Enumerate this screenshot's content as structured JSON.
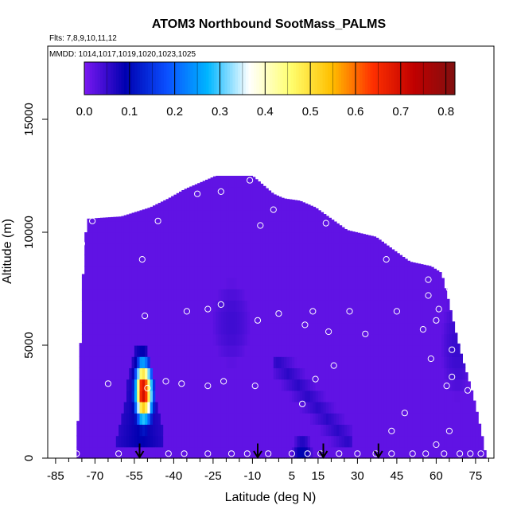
{
  "chart_data": {
    "type": "heatmap",
    "title": "ATOM3 Northbound SootMass_PALMS",
    "flights_label": "Flts: 7,8,9,10,11,12",
    "dates_label": "MMDD: 1014,1017,1019,1020,1023,1025",
    "xlabel": "Latitude (deg N)",
    "ylabel": "Altitude (m)",
    "xlim": [
      -88,
      82
    ],
    "ylim": [
      0,
      17500
    ],
    "x_ticks": [
      -85,
      -70,
      -55,
      -40,
      -25,
      -10,
      5,
      15,
      30,
      45,
      60,
      75
    ],
    "x_tick_labels": [
      "-85",
      "-70",
      "-55",
      "-40",
      "-25",
      "-10",
      "5",
      "15",
      "30",
      "45",
      "60",
      "75"
    ],
    "y_ticks": [
      0,
      5000,
      10000,
      15000
    ],
    "y_tick_labels": [
      "0",
      "5000",
      "10000",
      "15000"
    ],
    "colorbar": {
      "min": 0.0,
      "max": 0.82,
      "ticks": [
        0.0,
        0.1,
        0.2,
        0.3,
        0.4,
        0.5,
        0.6,
        0.7,
        0.8
      ],
      "tick_labels": [
        "0.0",
        "0.1",
        "0.2",
        "0.3",
        "0.4",
        "0.5",
        "0.6",
        "0.7",
        "0.8"
      ],
      "stops": [
        "#7b18f2",
        "#0000b0",
        "#0a4fff",
        "#00b6ff",
        "#ffffff",
        "#ffff70",
        "#ffc000",
        "#ff3000",
        "#c00000",
        "#801010"
      ]
    },
    "background_value": 0.02,
    "domain_profile": [
      [
        -77,
        0
      ],
      [
        -76,
        3300
      ],
      [
        -75,
        6900
      ],
      [
        -74,
        9400
      ],
      [
        -73,
        10600
      ],
      [
        -60,
        10700
      ],
      [
        -49,
        11100
      ],
      [
        -42,
        11500
      ],
      [
        -36,
        11900
      ],
      [
        -30,
        12200
      ],
      [
        -24,
        12500
      ],
      [
        -10,
        12500
      ],
      [
        -6,
        12100
      ],
      [
        -2,
        11700
      ],
      [
        2,
        11500
      ],
      [
        8,
        11400
      ],
      [
        14,
        11100
      ],
      [
        20,
        10600
      ],
      [
        26,
        10100
      ],
      [
        37,
        9800
      ],
      [
        44,
        9200
      ],
      [
        50,
        8700
      ],
      [
        58,
        8500
      ],
      [
        62,
        8200
      ],
      [
        64,
        7300
      ],
      [
        66,
        6300
      ],
      [
        68,
        5300
      ],
      [
        70,
        4400
      ],
      [
        72,
        3600
      ],
      [
        74,
        2800
      ],
      [
        76,
        1800
      ],
      [
        78,
        700
      ],
      [
        79,
        0
      ]
    ],
    "plumes": [
      {
        "name": "south-atlantic-plume",
        "lat_min": -63,
        "lat_max": -44,
        "alt_min": 500,
        "alt_max": 5000,
        "peak": 0.78
      },
      {
        "name": "tropical-surface",
        "lat_min": 4,
        "lat_max": 14,
        "alt_min": 0,
        "alt_max": 900,
        "peak": 0.12
      },
      {
        "name": "tropical-outflow",
        "lat_min": -2,
        "lat_max": 28,
        "alt_min": 500,
        "alt_max": 4500,
        "peak": 0.06
      },
      {
        "name": "midlat-band",
        "lat_min": -28,
        "lat_max": -8,
        "alt_min": 3500,
        "alt_max": 8500,
        "peak": 0.045
      },
      {
        "name": "arctic-edge",
        "lat_min": 60,
        "lat_max": 76,
        "alt_min": 2000,
        "alt_max": 8000,
        "peak": 0.05
      }
    ],
    "profile_points": [
      [
        -77,
        200
      ],
      [
        -75,
        9500
      ],
      [
        -71,
        10500
      ],
      [
        -65,
        3300
      ],
      [
        -61,
        200
      ],
      [
        -52,
        8800
      ],
      [
        -51,
        6300
      ],
      [
        -50,
        3100
      ],
      [
        -46,
        10500
      ],
      [
        -43,
        3400
      ],
      [
        -42,
        200
      ],
      [
        -37,
        3300
      ],
      [
        -36,
        200
      ],
      [
        -35,
        6500
      ],
      [
        -31,
        11700
      ],
      [
        -27,
        6600
      ],
      [
        -27,
        3200
      ],
      [
        -27,
        200
      ],
      [
        -22,
        6800
      ],
      [
        -21,
        3400
      ],
      [
        -18,
        200
      ],
      [
        -12,
        200
      ],
      [
        -9,
        3200
      ],
      [
        -8,
        6100
      ],
      [
        -7,
        10300
      ],
      [
        -4,
        200
      ],
      [
        -2,
        11000
      ],
      [
        0,
        6400
      ],
      [
        5,
        200
      ],
      [
        9,
        2400
      ],
      [
        10,
        5900
      ],
      [
        11,
        200
      ],
      [
        13,
        6500
      ],
      [
        14,
        3500
      ],
      [
        16,
        200
      ],
      [
        18,
        10400
      ],
      [
        19,
        5600
      ],
      [
        21,
        4100
      ],
      [
        23,
        200
      ],
      [
        27,
        6500
      ],
      [
        30,
        200
      ],
      [
        33,
        5500
      ],
      [
        37,
        200
      ],
      [
        41,
        8800
      ],
      [
        43,
        1200
      ],
      [
        43,
        200
      ],
      [
        45,
        6500
      ],
      [
        48,
        2000
      ],
      [
        51,
        200
      ],
      [
        55,
        5700
      ],
      [
        56,
        200
      ],
      [
        57,
        7200
      ],
      [
        57,
        7900
      ],
      [
        58,
        4400
      ],
      [
        60,
        600
      ],
      [
        60,
        6100
      ],
      [
        61,
        6600
      ],
      [
        63,
        200
      ],
      [
        64,
        3200
      ],
      [
        65,
        7500
      ],
      [
        65,
        1200
      ],
      [
        66,
        3600
      ],
      [
        66,
        4800
      ],
      [
        68,
        8500
      ],
      [
        69,
        200
      ],
      [
        70,
        6600
      ],
      [
        72,
        3000
      ],
      [
        73,
        200
      ],
      [
        77,
        200
      ],
      [
        -22,
        11800
      ],
      [
        -11,
        12300
      ]
    ],
    "arrow_latitudes": [
      -53,
      -8,
      17,
      38
    ]
  }
}
